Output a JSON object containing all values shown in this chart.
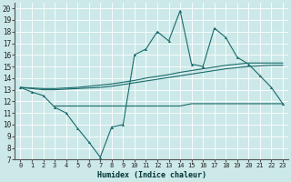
{
  "xlabel": "Humidex (Indice chaleur)",
  "background_color": "#cce8e8",
  "line_color": "#1a6b6b",
  "xlim": [
    -0.5,
    23.5
  ],
  "ylim": [
    7,
    20.5
  ],
  "yticks": [
    7,
    8,
    9,
    10,
    11,
    12,
    13,
    14,
    15,
    16,
    17,
    18,
    19,
    20
  ],
  "xticks": [
    0,
    1,
    2,
    3,
    4,
    5,
    6,
    7,
    8,
    9,
    10,
    11,
    12,
    13,
    14,
    15,
    16,
    17,
    18,
    19,
    20,
    21,
    22,
    23
  ],
  "series1_x": [
    0,
    1,
    2,
    3,
    4,
    5,
    6,
    7,
    8,
    9,
    10,
    11,
    12,
    13,
    14,
    15,
    16,
    17,
    18,
    19,
    20,
    21,
    22,
    23
  ],
  "series1_y": [
    13.2,
    12.8,
    12.5,
    11.5,
    11.0,
    9.7,
    8.5,
    7.2,
    9.8,
    10.0,
    16.0,
    16.5,
    18.0,
    17.2,
    19.8,
    15.2,
    15.0,
    18.3,
    17.5,
    15.8,
    15.2,
    14.2,
    13.2,
    11.8
  ],
  "series2_x": [
    3,
    4,
    5,
    6,
    7,
    8,
    9,
    10,
    11,
    12,
    13,
    14,
    15,
    16,
    17,
    18,
    19,
    20,
    21,
    22,
    23
  ],
  "series2_y": [
    11.6,
    11.6,
    11.6,
    11.6,
    11.6,
    11.6,
    11.6,
    11.6,
    11.6,
    11.6,
    11.6,
    11.6,
    11.8,
    11.8,
    11.8,
    11.8,
    11.8,
    11.8,
    11.8,
    11.8,
    11.8
  ],
  "series3_x": [
    0,
    1,
    2,
    3,
    4,
    5,
    6,
    7,
    8,
    9,
    10,
    11,
    12,
    13,
    14,
    15,
    16,
    17,
    18,
    19,
    20,
    21,
    22,
    23
  ],
  "series3_y": [
    13.2,
    13.1,
    13.0,
    13.0,
    13.05,
    13.1,
    13.15,
    13.2,
    13.3,
    13.45,
    13.6,
    13.75,
    13.9,
    14.05,
    14.2,
    14.35,
    14.5,
    14.65,
    14.8,
    14.9,
    15.0,
    15.05,
    15.1,
    15.1
  ],
  "series4_x": [
    0,
    1,
    2,
    3,
    4,
    5,
    6,
    7,
    8,
    9,
    10,
    11,
    12,
    13,
    14,
    15,
    16,
    17,
    18,
    19,
    20,
    21,
    22,
    23
  ],
  "series4_y": [
    13.2,
    13.15,
    13.1,
    13.1,
    13.15,
    13.2,
    13.3,
    13.4,
    13.5,
    13.65,
    13.8,
    14.0,
    14.15,
    14.3,
    14.5,
    14.65,
    14.8,
    14.95,
    15.1,
    15.2,
    15.3,
    15.3,
    15.3,
    15.3
  ]
}
